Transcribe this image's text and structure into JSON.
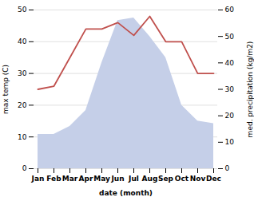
{
  "chart_data": {
    "type": "line",
    "categories": [
      "Jan",
      "Feb",
      "Mar",
      "Apr",
      "May",
      "Jun",
      "Jul",
      "Aug",
      "Sep",
      "Oct",
      "Nov",
      "Dec"
    ],
    "x_label": "date (month)",
    "y_label": "max temp (C)",
    "y2_label": "med. precipitation (kg/m2)",
    "ylim": [
      0,
      50
    ],
    "yticks": [
      0,
      10,
      20,
      30,
      40,
      50
    ],
    "y2lim": [
      0,
      60
    ],
    "y2ticks": [
      0,
      10,
      20,
      30,
      40,
      50,
      60
    ],
    "grid": true,
    "series": [
      {
        "type": "area",
        "axis": "y2",
        "color": "#c5cfe8",
        "values": [
          13,
          13,
          16,
          22,
          40,
          56,
          57,
          50,
          42,
          24,
          18,
          17
        ]
      },
      {
        "type": "line",
        "color": "#c0504d",
        "values": [
          25,
          26,
          35,
          44,
          44,
          46,
          42,
          48,
          40,
          40,
          30,
          30
        ]
      }
    ]
  }
}
